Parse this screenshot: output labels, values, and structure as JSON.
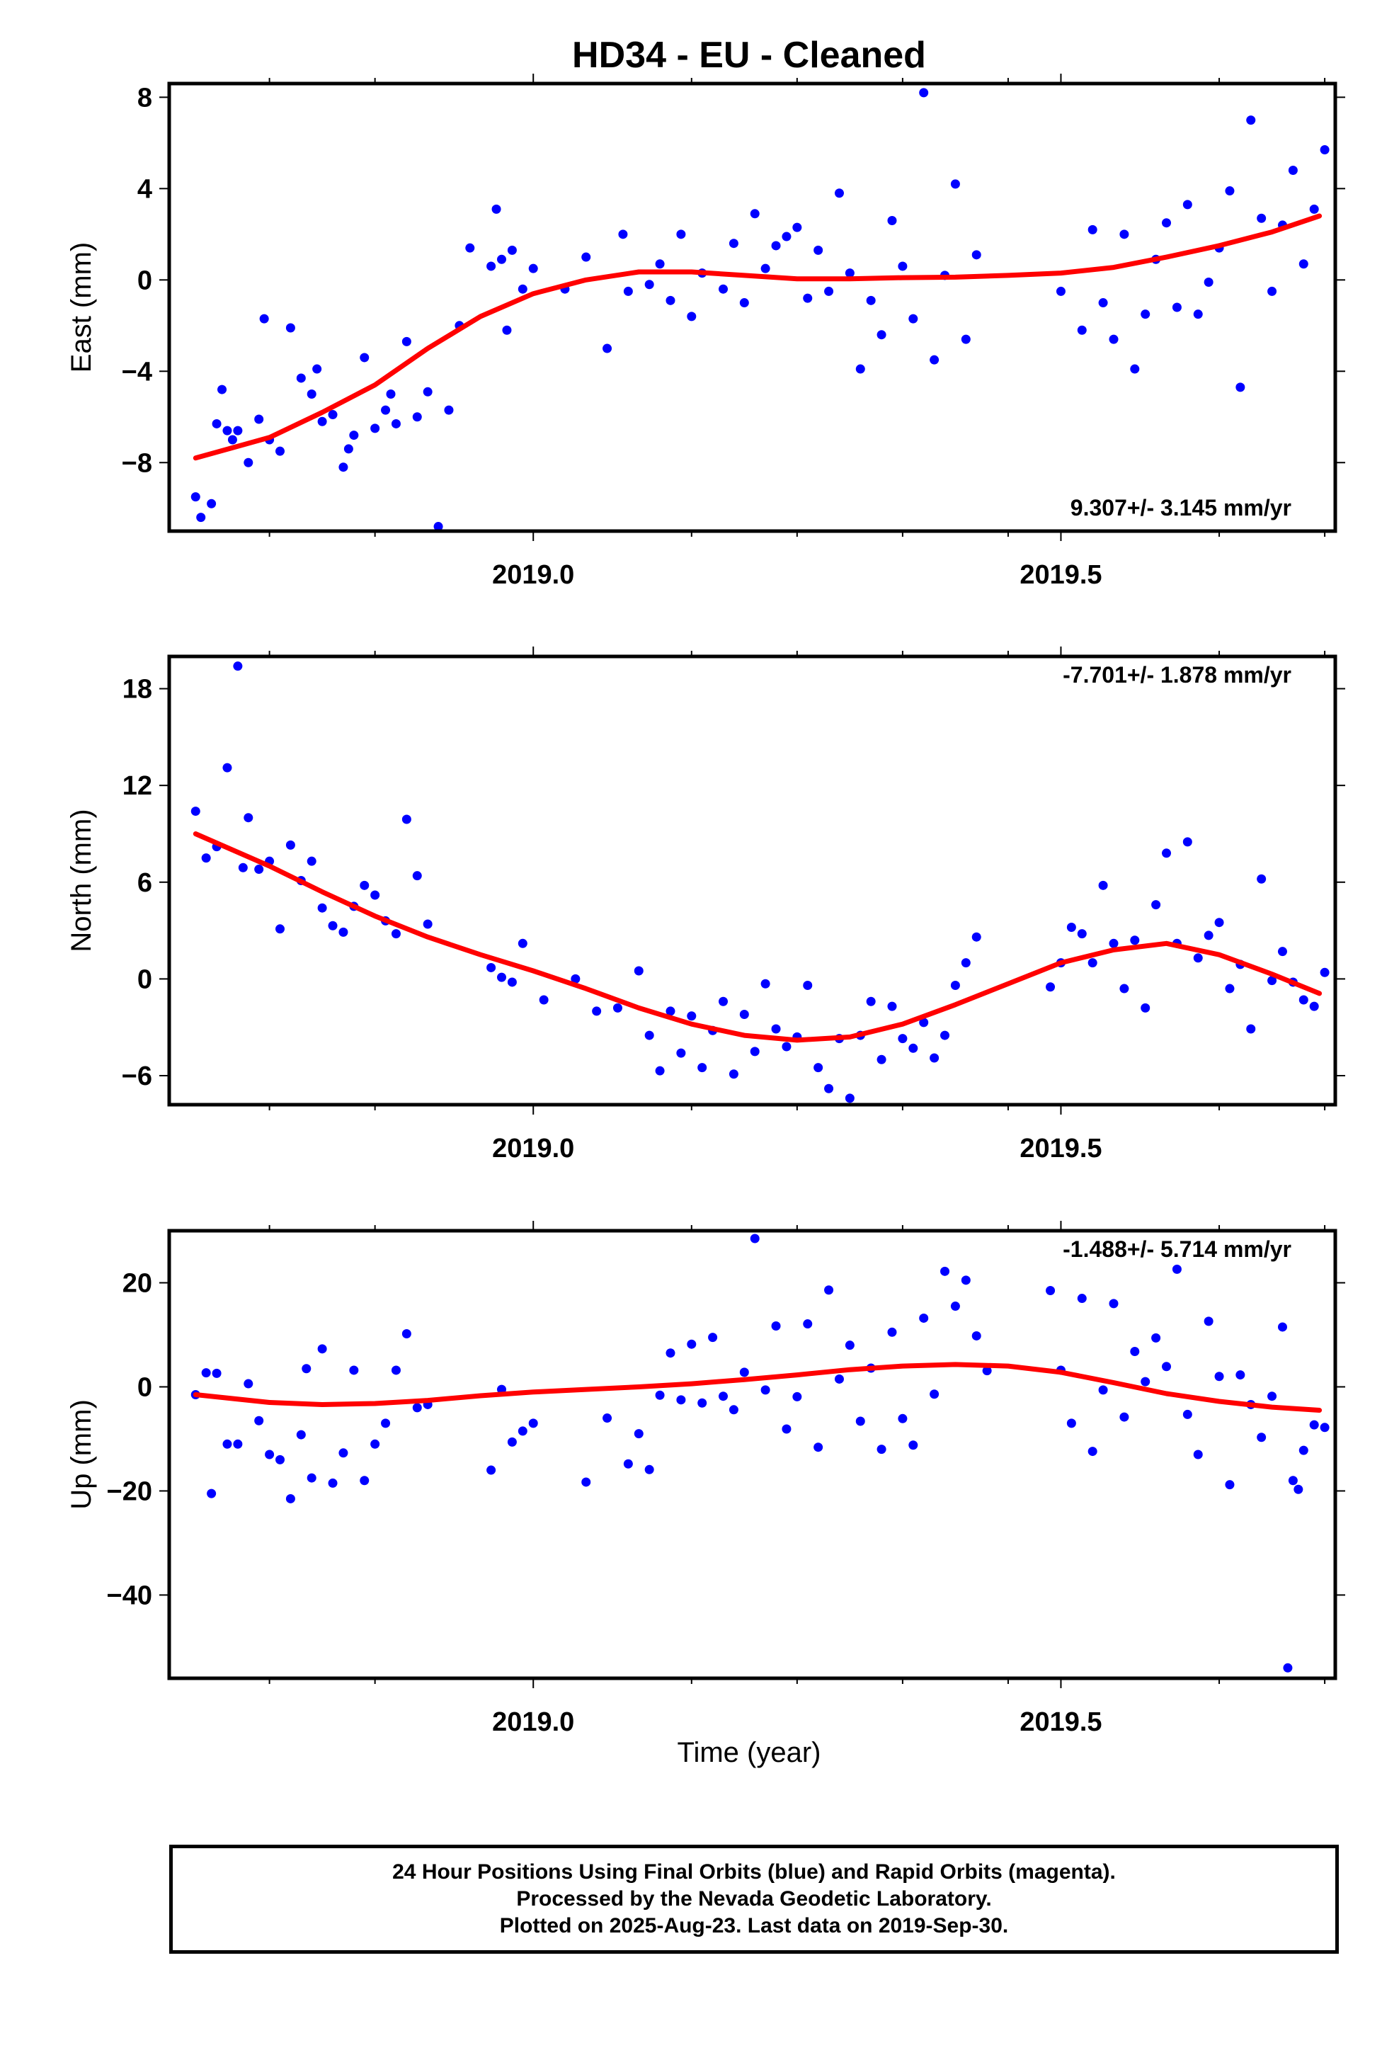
{
  "title": "HD34  - EU - Cleaned",
  "x_axis_label": "Time (year)",
  "footer": {
    "line1": "24 Hour Positions Using Final Orbits (blue) and Rapid Orbits (magenta).",
    "line2": "Processed by the Nevada Geodetic Laboratory.",
    "line3": "Plotted on 2025-Aug-23. Last data on 2019-Sep-30."
  },
  "colors": {
    "points": "#0000ff",
    "fit": "#ff0000",
    "frame": "#000000"
  },
  "chart_data": [
    {
      "type": "scatter",
      "ylabel": "East (mm)",
      "xlabel": "",
      "rate": "9.307+/- 3.145 mm/yr",
      "xlim": [
        2018.655,
        2019.76
      ],
      "ylim": [
        -11,
        8.6
      ],
      "yticks": [
        -8,
        -4,
        0,
        4,
        8
      ],
      "xticks": [
        2019.0,
        2019.5
      ],
      "xtick_labels": [
        "2019.0",
        "2019.5"
      ],
      "grid": false,
      "series": [
        {
          "x": [
            2018.68,
            2018.685,
            2018.695,
            2018.7,
            2018.705,
            2018.71,
            2018.715,
            2018.72,
            2018.73,
            2018.74,
            2018.745,
            2018.75,
            2018.76,
            2018.77,
            2018.78,
            2018.79,
            2018.795,
            2018.8,
            2018.81,
            2018.82,
            2018.825,
            2018.83,
            2018.84,
            2018.85,
            2018.86,
            2018.865,
            2018.87,
            2018.88,
            2018.89,
            2018.9,
            2018.91,
            2018.92,
            2018.93,
            2018.94,
            2018.96,
            2018.965,
            2018.97,
            2018.975,
            2018.98,
            2018.99,
            2019.0,
            2019.03,
            2019.05,
            2019.07,
            2019.085,
            2019.09,
            2019.11,
            2019.12,
            2019.13,
            2019.14,
            2019.15,
            2019.16,
            2019.18,
            2019.19,
            2019.2,
            2019.21,
            2019.22,
            2019.23,
            2019.24,
            2019.25,
            2019.26,
            2019.27,
            2019.28,
            2019.29,
            2019.3,
            2019.31,
            2019.32,
            2019.33,
            2019.34,
            2019.35,
            2019.36,
            2019.37,
            2019.38,
            2019.39,
            2019.4,
            2019.41,
            2019.42,
            2019.5,
            2019.52,
            2019.53,
            2019.54,
            2019.55,
            2019.56,
            2019.57,
            2019.58,
            2019.59,
            2019.6,
            2019.61,
            2019.62,
            2019.63,
            2019.64,
            2019.65,
            2019.66,
            2019.67,
            2019.68,
            2019.69,
            2019.7,
            2019.71,
            2019.72,
            2019.73,
            2019.74,
            2019.75
          ],
          "y": [
            -9.5,
            -10.4,
            -9.8,
            -6.3,
            -4.8,
            -6.6,
            -7.0,
            -6.6,
            -8.0,
            -6.1,
            -1.7,
            -7.0,
            -7.5,
            -2.1,
            -4.3,
            -5.0,
            -3.9,
            -6.2,
            -5.9,
            -8.2,
            -7.4,
            -6.8,
            -3.4,
            -6.5,
            -5.7,
            -5.0,
            -6.3,
            -2.7,
            -6.0,
            -4.9,
            -10.8,
            -5.7,
            -2.0,
            1.4,
            0.6,
            3.1,
            0.9,
            -2.2,
            1.3,
            -0.4,
            0.5,
            -0.4,
            1.0,
            -3.0,
            2.0,
            -0.5,
            -0.2,
            0.7,
            -0.9,
            2.0,
            -1.6,
            0.3,
            -0.4,
            1.6,
            -1.0,
            2.9,
            0.5,
            1.5,
            1.9,
            2.3,
            -0.8,
            1.3,
            -0.5,
            3.8,
            0.3,
            -3.9,
            -0.9,
            -2.4,
            2.6,
            0.6,
            -1.7,
            8.2,
            -3.5,
            0.2,
            4.2,
            -2.6,
            1.1,
            -0.5,
            -2.2,
            2.2,
            -1.0,
            -2.6,
            2.0,
            -3.9,
            -1.5,
            0.9,
            2.5,
            -1.2,
            3.3,
            -1.5,
            -0.1,
            1.4,
            3.9,
            -4.7,
            7.0,
            2.7,
            -0.5,
            2.4,
            4.8,
            0.7,
            3.1,
            5.7
          ]
        },
        {
          "name": "",
          "fit_x": [
            2018.68,
            2018.75,
            2018.8,
            2018.85,
            2018.9,
            2018.95,
            2019.0,
            2019.05,
            2019.1,
            2019.15,
            2019.2,
            2019.25,
            2019.3,
            2019.35,
            2019.4,
            2019.45,
            2019.5,
            2019.55,
            2019.6,
            2019.65,
            2019.7,
            2019.745
          ],
          "fit_y": [
            -7.8,
            -6.9,
            -5.8,
            -4.6,
            -3.0,
            -1.6,
            -0.6,
            0.0,
            0.35,
            0.35,
            0.2,
            0.05,
            0.05,
            0.1,
            0.12,
            0.2,
            0.3,
            0.55,
            1.0,
            1.5,
            2.1,
            2.8
          ]
        }
      ]
    },
    {
      "type": "scatter",
      "ylabel": "North (mm)",
      "xlabel": "",
      "rate": "-7.701+/- 1.878 mm/yr",
      "xlim": [
        2018.655,
        2019.76
      ],
      "ylim": [
        -7.8,
        20
      ],
      "yticks": [
        -6,
        0,
        6,
        12,
        18
      ],
      "xticks": [
        2019.0,
        2019.5
      ],
      "xtick_labels": [
        "2019.0",
        "2019.5"
      ],
      "grid": false,
      "series": [
        {
          "x": [
            2018.68,
            2018.69,
            2018.7,
            2018.71,
            2018.72,
            2018.725,
            2018.73,
            2018.74,
            2018.75,
            2018.76,
            2018.77,
            2018.78,
            2018.79,
            2018.8,
            2018.81,
            2018.82,
            2018.83,
            2018.84,
            2018.85,
            2018.86,
            2018.87,
            2018.88,
            2018.89,
            2018.9,
            2018.96,
            2018.97,
            2018.98,
            2018.99,
            2019.01,
            2019.04,
            2019.06,
            2019.08,
            2019.1,
            2019.11,
            2019.12,
            2019.13,
            2019.14,
            2019.15,
            2019.16,
            2019.17,
            2019.18,
            2019.19,
            2019.2,
            2019.21,
            2019.22,
            2019.23,
            2019.24,
            2019.25,
            2019.26,
            2019.27,
            2019.28,
            2019.29,
            2019.3,
            2019.31,
            2019.32,
            2019.33,
            2019.34,
            2019.35,
            2019.36,
            2019.37,
            2019.38,
            2019.39,
            2019.4,
            2019.41,
            2019.42,
            2019.49,
            2019.5,
            2019.51,
            2019.52,
            2019.53,
            2019.54,
            2019.55,
            2019.56,
            2019.57,
            2019.58,
            2019.59,
            2019.6,
            2019.61,
            2019.62,
            2019.63,
            2019.64,
            2019.65,
            2019.66,
            2019.67,
            2019.68,
            2019.69,
            2019.7,
            2019.71,
            2019.72,
            2019.73,
            2019.74,
            2019.75
          ],
          "y": [
            10.4,
            7.5,
            8.2,
            13.1,
            19.4,
            6.9,
            10.0,
            6.8,
            7.3,
            3.1,
            8.3,
            6.1,
            7.3,
            4.4,
            3.3,
            2.9,
            4.5,
            5.8,
            5.2,
            3.6,
            2.8,
            9.9,
            6.4,
            3.4,
            0.7,
            0.1,
            -0.2,
            2.2,
            -1.3,
            0.0,
            -2.0,
            -1.8,
            0.5,
            -3.5,
            -5.7,
            -2.0,
            -4.6,
            -2.3,
            -5.5,
            -3.2,
            -1.4,
            -5.9,
            -2.2,
            -4.5,
            -0.3,
            -3.1,
            -4.2,
            -3.6,
            -0.4,
            -5.5,
            -6.8,
            -3.7,
            -7.4,
            -3.5,
            -1.4,
            -5.0,
            -1.7,
            -3.7,
            -4.3,
            -2.7,
            -4.9,
            -3.5,
            -0.4,
            1.0,
            2.6,
            -0.5,
            1.0,
            3.2,
            2.8,
            1.0,
            5.8,
            2.2,
            -0.6,
            2.4,
            -1.8,
            4.6,
            7.8,
            2.2,
            8.5,
            1.3,
            2.7,
            3.5,
            -0.6,
            0.9,
            -3.1,
            6.2,
            -0.1,
            1.7,
            -0.2,
            -1.3,
            -1.7,
            0.4
          ]
        },
        {
          "name": "",
          "fit_x": [
            2018.68,
            2018.75,
            2018.8,
            2018.85,
            2018.9,
            2018.95,
            2019.0,
            2019.05,
            2019.1,
            2019.15,
            2019.2,
            2019.25,
            2019.3,
            2019.35,
            2019.4,
            2019.45,
            2019.5,
            2019.55,
            2019.6,
            2019.65,
            2019.7,
            2019.745
          ],
          "fit_y": [
            9.0,
            7.0,
            5.4,
            3.9,
            2.6,
            1.5,
            0.5,
            -0.6,
            -1.8,
            -2.8,
            -3.5,
            -3.8,
            -3.6,
            -2.8,
            -1.6,
            -0.3,
            1.0,
            1.8,
            2.2,
            1.5,
            0.3,
            -0.9
          ]
        }
      ]
    },
    {
      "type": "scatter",
      "ylabel": "Up (mm)",
      "xlabel": "Time (year)",
      "rate": "-1.488+/- 5.714 mm/yr",
      "xlim": [
        2018.655,
        2019.76
      ],
      "ylim": [
        -56,
        30
      ],
      "yticks": [
        -40,
        -20,
        0,
        20
      ],
      "xticks": [
        2019.0,
        2019.5
      ],
      "xtick_labels": [
        "2019.0",
        "2019.5"
      ],
      "grid": false,
      "series": [
        {
          "x": [
            2018.68,
            2018.69,
            2018.695,
            2018.7,
            2018.71,
            2018.72,
            2018.73,
            2018.74,
            2018.75,
            2018.76,
            2018.77,
            2018.78,
            2018.785,
            2018.79,
            2018.8,
            2018.81,
            2018.82,
            2018.83,
            2018.84,
            2018.85,
            2018.86,
            2018.87,
            2018.88,
            2018.89,
            2018.9,
            2018.96,
            2018.97,
            2018.98,
            2018.99,
            2019.0,
            2019.05,
            2019.07,
            2019.09,
            2019.1,
            2019.11,
            2019.12,
            2019.13,
            2019.14,
            2019.15,
            2019.16,
            2019.17,
            2019.18,
            2019.19,
            2019.2,
            2019.21,
            2019.22,
            2019.23,
            2019.24,
            2019.25,
            2019.26,
            2019.27,
            2019.28,
            2019.29,
            2019.3,
            2019.31,
            2019.32,
            2019.33,
            2019.34,
            2019.35,
            2019.36,
            2019.37,
            2019.38,
            2019.39,
            2019.4,
            2019.41,
            2019.42,
            2019.43,
            2019.49,
            2019.5,
            2019.51,
            2019.52,
            2019.53,
            2019.54,
            2019.55,
            2019.56,
            2019.57,
            2019.58,
            2019.59,
            2019.6,
            2019.61,
            2019.62,
            2019.63,
            2019.64,
            2019.65,
            2019.66,
            2019.67,
            2019.68,
            2019.69,
            2019.7,
            2019.71,
            2019.715,
            2019.72,
            2019.725,
            2019.73,
            2019.74,
            2019.75
          ],
          "y": [
            -1.5,
            2.7,
            -20.5,
            2.6,
            -11.0,
            -11.0,
            0.6,
            -6.5,
            -13.0,
            -14.0,
            -21.5,
            -9.2,
            3.5,
            -17.5,
            7.3,
            -18.5,
            -12.7,
            3.2,
            -18.0,
            -11.0,
            -7.0,
            3.2,
            10.2,
            -4.0,
            -3.4,
            -16.0,
            -0.5,
            -10.6,
            -8.5,
            -7.0,
            -18.3,
            -6.0,
            -14.8,
            -9.0,
            -15.9,
            -1.6,
            6.5,
            -2.5,
            8.2,
            -3.1,
            9.5,
            -1.8,
            -4.4,
            2.8,
            28.5,
            -0.6,
            11.7,
            -8.1,
            -1.9,
            12.1,
            -11.6,
            18.6,
            1.5,
            8.0,
            -6.6,
            3.6,
            -12.0,
            10.5,
            -6.1,
            -11.2,
            13.2,
            -1.4,
            22.2,
            15.5,
            20.5,
            9.8,
            3.1,
            18.5,
            3.2,
            -7.0,
            17.0,
            -12.4,
            -0.6,
            16.0,
            -5.8,
            6.8,
            1.0,
            9.4,
            3.9,
            22.6,
            -5.3,
            -13.0,
            12.6,
            2.0,
            -18.8,
            2.3,
            -3.4,
            -9.7,
            -1.8,
            11.5,
            -54.0,
            -18.0,
            -19.7,
            -12.2,
            -7.3,
            -7.8
          ]
        },
        {
          "name": "",
          "fit_x": [
            2018.68,
            2018.75,
            2018.8,
            2018.85,
            2018.9,
            2018.95,
            2019.0,
            2019.05,
            2019.1,
            2019.15,
            2019.2,
            2019.25,
            2019.3,
            2019.35,
            2019.4,
            2019.45,
            2019.5,
            2019.55,
            2019.6,
            2019.65,
            2019.7,
            2019.745
          ],
          "fit_y": [
            -1.5,
            -3.0,
            -3.4,
            -3.2,
            -2.6,
            -1.7,
            -1.0,
            -0.5,
            0.0,
            0.6,
            1.4,
            2.3,
            3.3,
            4.0,
            4.3,
            4.0,
            2.8,
            0.8,
            -1.3,
            -2.8,
            -3.9,
            -4.5
          ]
        }
      ]
    }
  ]
}
